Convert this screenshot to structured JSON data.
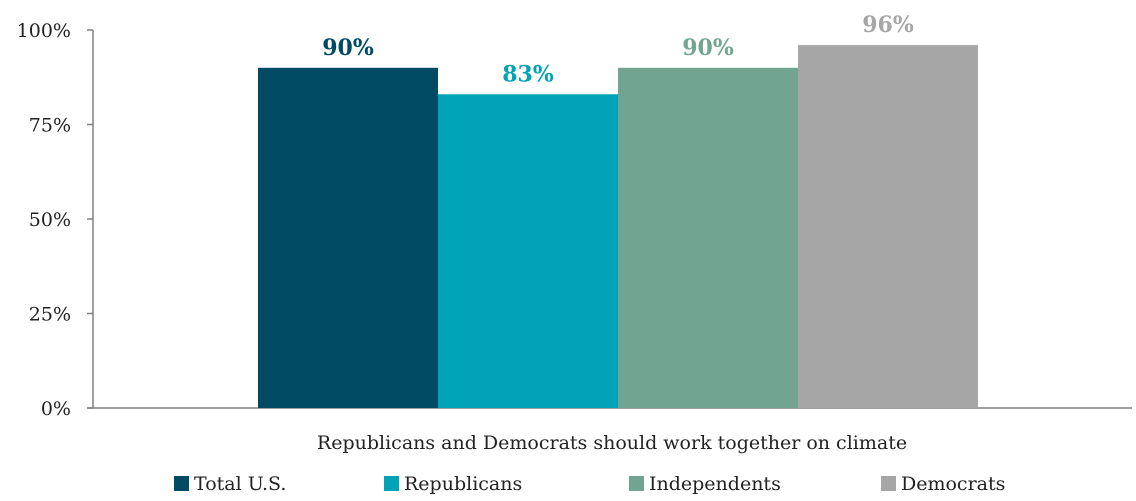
{
  "chart_data": {
    "type": "bar",
    "categories": [
      "Republicans and Democrats should work together on climate"
    ],
    "series": [
      {
        "name": "Total U.S.",
        "values": [
          90
        ],
        "color": "#004b63",
        "label": "90%"
      },
      {
        "name": "Republicans",
        "values": [
          83
        ],
        "color": "#00a3b7",
        "label": "83%"
      },
      {
        "name": "Independents",
        "values": [
          90
        ],
        "color": "#72a591",
        "label": "90%"
      },
      {
        "name": "Democrats",
        "values": [
          96
        ],
        "color": "#a6a6a6",
        "label": "96%"
      }
    ],
    "title": "",
    "xlabel": "",
    "ylabel": "",
    "ylim": [
      0,
      100
    ],
    "yticks": [
      {
        "value": 0,
        "label": "0%"
      },
      {
        "value": 25,
        "label": "25%"
      },
      {
        "value": 50,
        "label": "50%"
      },
      {
        "value": 75,
        "label": "75%"
      },
      {
        "value": 100,
        "label": "100%"
      }
    ],
    "grid": false,
    "legend": "bottom"
  }
}
